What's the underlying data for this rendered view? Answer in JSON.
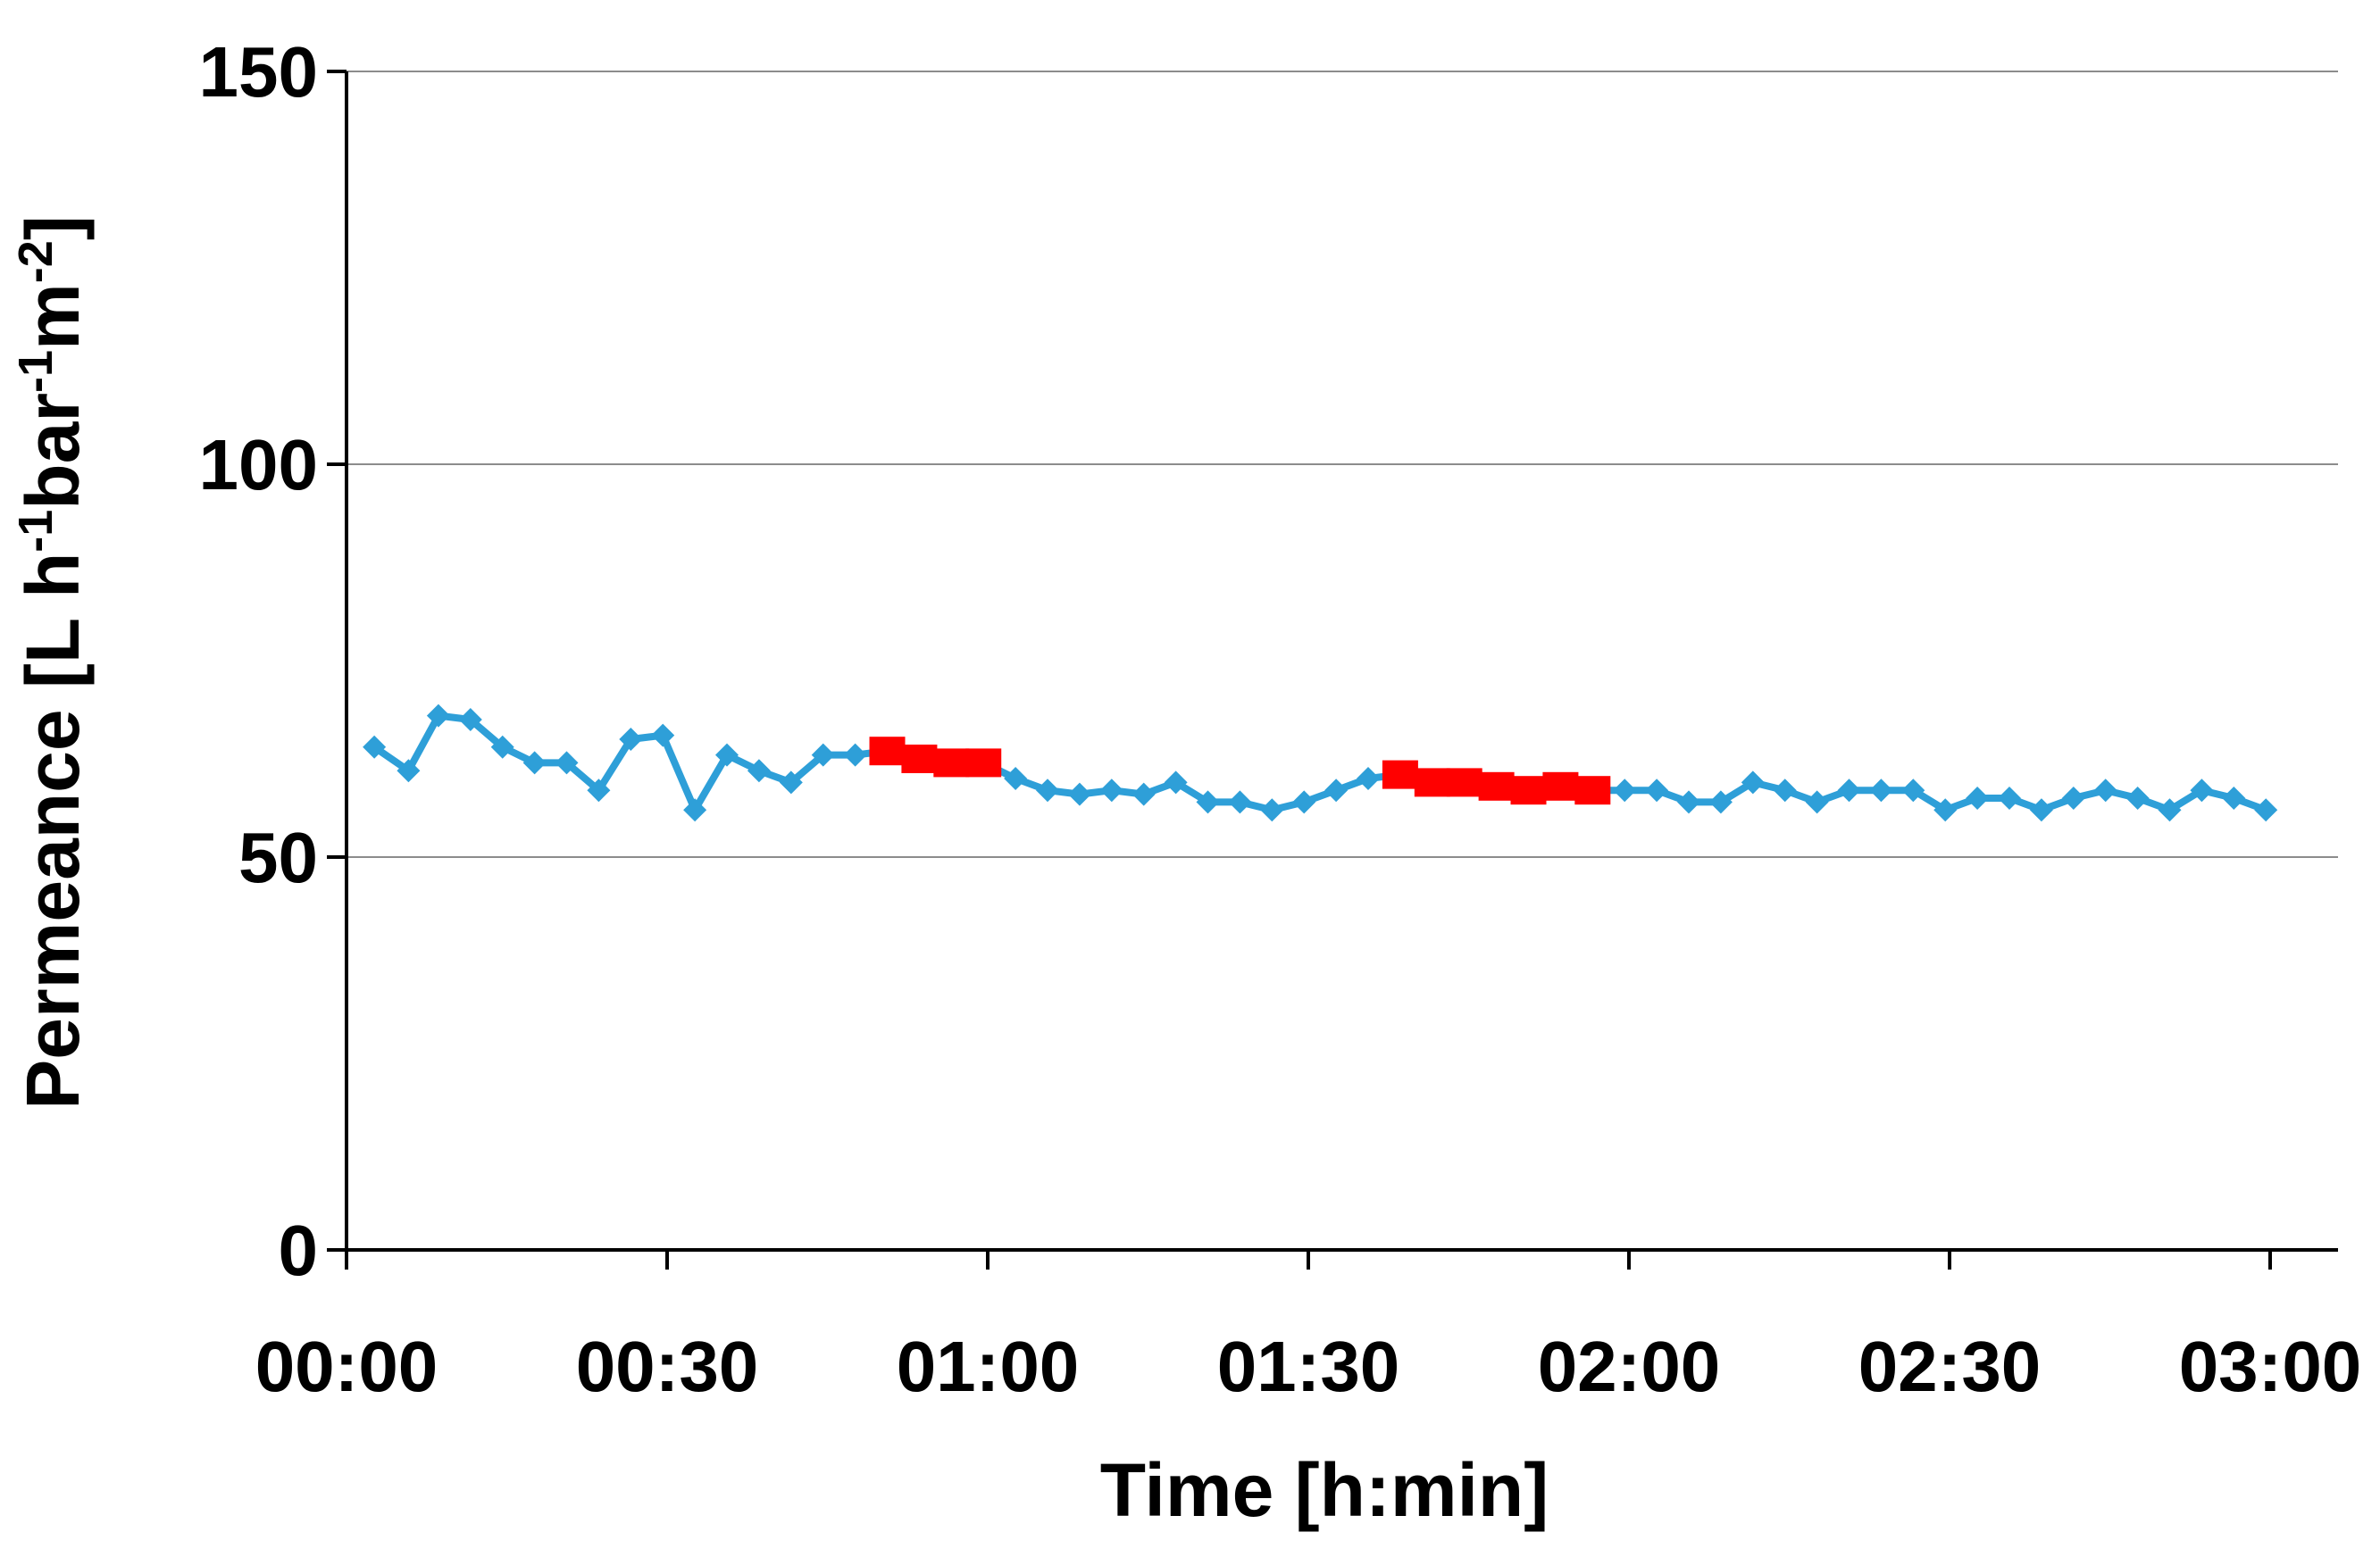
{
  "chart_data": {
    "type": "line",
    "xlabel": "Time [h:min]",
    "ylabel": {
      "parts": [
        {
          "text": "Permeance [L h",
          "sup": false
        },
        {
          "text": "-1",
          "sup": true
        },
        {
          "text": "bar",
          "sup": false
        },
        {
          "text": "-1",
          "sup": true
        },
        {
          "text": "m",
          "sup": false
        },
        {
          "text": "-2",
          "sup": true
        },
        {
          "text": "]",
          "sup": false
        }
      ]
    },
    "xlim": [
      0,
      180
    ],
    "ylim": [
      0,
      150
    ],
    "x_ticks": [
      {
        "value": 0,
        "label": "00:00"
      },
      {
        "value": 30,
        "label": "00:30"
      },
      {
        "value": 60,
        "label": "01:00"
      },
      {
        "value": 90,
        "label": "01:30"
      },
      {
        "value": 120,
        "label": "02:00"
      },
      {
        "value": 150,
        "label": "02:30"
      },
      {
        "value": 180,
        "label": "03:00"
      }
    ],
    "y_ticks": [
      {
        "value": 0,
        "label": "0"
      },
      {
        "value": 50,
        "label": "50"
      },
      {
        "value": 100,
        "label": "100"
      },
      {
        "value": 150,
        "label": "150"
      }
    ],
    "grid": {
      "horizontal": true,
      "vertical": false
    },
    "colors": {
      "line": "#2e9fd8",
      "marker": "#2e9fd8",
      "highlight": "#ff0000",
      "grid": "#8c8c8c",
      "axis": "#000000"
    },
    "series": [
      {
        "marker": "diamond",
        "x": [
          2.6,
          5.8,
          8.6,
          11.6,
          14.6,
          17.6,
          20.6,
          23.6,
          26.6,
          29.6,
          32.6,
          35.6,
          38.6,
          41.6,
          44.6,
          47.6,
          50.6,
          53.6,
          56.6,
          59.6,
          62.6,
          65.6,
          68.6,
          71.6,
          74.6,
          77.6,
          80.6,
          83.6,
          86.6,
          89.6,
          92.6,
          95.6,
          98.6,
          101.6,
          104.6,
          107.6,
          110.6,
          113.6,
          116.6,
          119.6,
          122.6,
          125.6,
          128.6,
          131.6,
          134.6,
          137.6,
          140.6,
          143.6,
          146.6,
          149.6,
          152.6,
          155.6,
          158.6,
          161.6,
          164.6,
          167.6,
          170.6,
          173.6,
          176.6,
          179.6
        ],
        "y": [
          64,
          61,
          68,
          67.5,
          64,
          62,
          62,
          58.5,
          65,
          65.5,
          56,
          63,
          61,
          59.5,
          63,
          63,
          63.5,
          62.5,
          62,
          62,
          60,
          58.5,
          58,
          58.5,
          58,
          59.5,
          57,
          57,
          56,
          57,
          58.5,
          60,
          60.5,
          59.5,
          59.5,
          59,
          58.5,
          59,
          58.5,
          58.5,
          58.5,
          57,
          57,
          59.5,
          58.5,
          57,
          58.5,
          58.5,
          58.5,
          56,
          57.5,
          57.5,
          56,
          57.5,
          58.5,
          57.5,
          56,
          58.5,
          57.5,
          56
        ]
      }
    ],
    "highlighted_points": [
      {
        "x": 50.6,
        "y": 63.5
      },
      {
        "x": 53.6,
        "y": 62.5
      },
      {
        "x": 56.6,
        "y": 62
      },
      {
        "x": 59.6,
        "y": 62
      },
      {
        "x": 98.6,
        "y": 60.5
      },
      {
        "x": 101.6,
        "y": 59.5
      },
      {
        "x": 104.6,
        "y": 59.5
      },
      {
        "x": 107.6,
        "y": 59
      },
      {
        "x": 110.6,
        "y": 58.5
      },
      {
        "x": 113.6,
        "y": 59
      },
      {
        "x": 116.6,
        "y": 58.5
      }
    ]
  }
}
